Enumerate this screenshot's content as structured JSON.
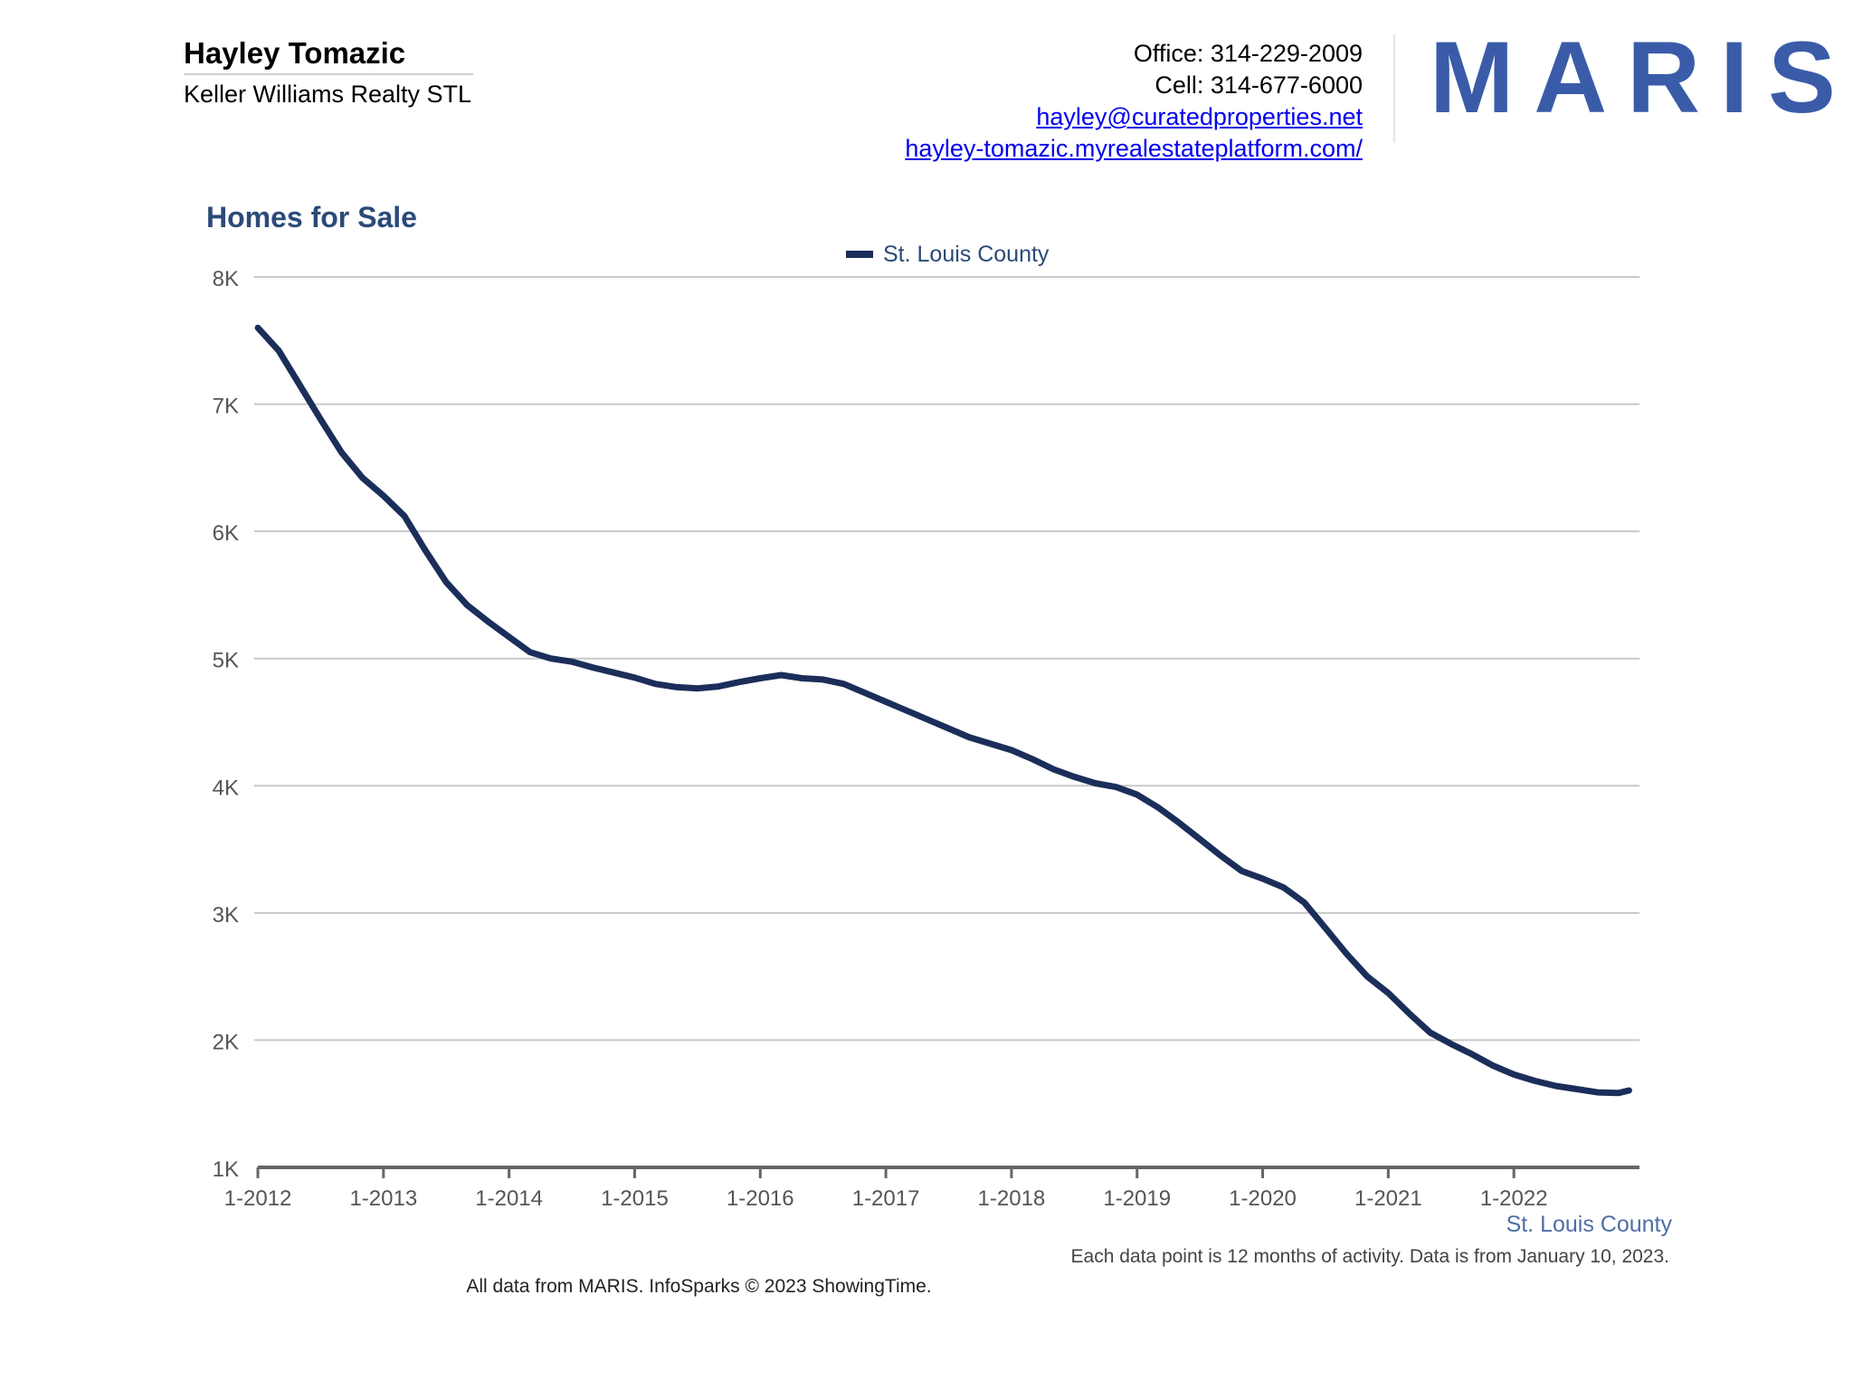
{
  "agent": {
    "name": "Hayley Tomazic",
    "company": "Keller Williams Realty STL"
  },
  "contact": {
    "office": "Office: 314-229-2009",
    "cell": "Cell: 314-677-6000",
    "email": "hayley@curatedproperties.net",
    "website": "hayley-tomazic.myrealestateplatform.com/"
  },
  "logo": {
    "text": "MARIS",
    "color": "#3a5ca8"
  },
  "chart_data": {
    "type": "line",
    "title": "Homes for Sale",
    "ylim": [
      1000,
      8000
    ],
    "y_ticks": [
      {
        "value": 1000,
        "label": "1K"
      },
      {
        "value": 2000,
        "label": "2K"
      },
      {
        "value": 3000,
        "label": "3K"
      },
      {
        "value": 4000,
        "label": "4K"
      },
      {
        "value": 5000,
        "label": "5K"
      },
      {
        "value": 6000,
        "label": "6K"
      },
      {
        "value": 7000,
        "label": "7K"
      },
      {
        "value": 8000,
        "label": "8K"
      }
    ],
    "x_ticks": [
      "1-2012",
      "1-2013",
      "1-2014",
      "1-2015",
      "1-2016",
      "1-2017",
      "1-2018",
      "1-2019",
      "1-2020",
      "1-2021",
      "1-2022"
    ],
    "xlim": [
      "2012-01",
      "2022-12"
    ],
    "grid": true,
    "legend_position": "top-center",
    "x_axis_caption": "St. Louis County",
    "footnote": "Each data point is 12 months of activity. Data is from January 10, 2023.",
    "series": [
      {
        "name": "St. Louis County",
        "color": "#1b2e5a",
        "points": [
          [
            "2012-01",
            7600
          ],
          [
            "2012-03",
            7420
          ],
          [
            "2012-05",
            7150
          ],
          [
            "2012-07",
            6880
          ],
          [
            "2012-09",
            6620
          ],
          [
            "2012-11",
            6420
          ],
          [
            "2013-01",
            6280
          ],
          [
            "2013-03",
            6120
          ],
          [
            "2013-05",
            5850
          ],
          [
            "2013-07",
            5600
          ],
          [
            "2013-09",
            5420
          ],
          [
            "2013-11",
            5290
          ],
          [
            "2014-01",
            5170
          ],
          [
            "2014-03",
            5050
          ],
          [
            "2014-05",
            5000
          ],
          [
            "2014-07",
            4975
          ],
          [
            "2014-09",
            4930
          ],
          [
            "2014-11",
            4890
          ],
          [
            "2015-01",
            4850
          ],
          [
            "2015-03",
            4800
          ],
          [
            "2015-05",
            4775
          ],
          [
            "2015-07",
            4765
          ],
          [
            "2015-09",
            4780
          ],
          [
            "2015-11",
            4815
          ],
          [
            "2016-01",
            4845
          ],
          [
            "2016-03",
            4870
          ],
          [
            "2016-05",
            4845
          ],
          [
            "2016-07",
            4835
          ],
          [
            "2016-09",
            4800
          ],
          [
            "2016-11",
            4730
          ],
          [
            "2017-01",
            4660
          ],
          [
            "2017-03",
            4590
          ],
          [
            "2017-05",
            4520
          ],
          [
            "2017-07",
            4450
          ],
          [
            "2017-09",
            4380
          ],
          [
            "2017-11",
            4330
          ],
          [
            "2018-01",
            4280
          ],
          [
            "2018-03",
            4210
          ],
          [
            "2018-05",
            4130
          ],
          [
            "2018-07",
            4070
          ],
          [
            "2018-09",
            4020
          ],
          [
            "2018-11",
            3990
          ],
          [
            "2019-01",
            3930
          ],
          [
            "2019-03",
            3830
          ],
          [
            "2019-05",
            3710
          ],
          [
            "2019-07",
            3580
          ],
          [
            "2019-09",
            3450
          ],
          [
            "2019-11",
            3330
          ],
          [
            "2020-01",
            3270
          ],
          [
            "2020-03",
            3200
          ],
          [
            "2020-05",
            3080
          ],
          [
            "2020-07",
            2880
          ],
          [
            "2020-09",
            2680
          ],
          [
            "2020-11",
            2500
          ],
          [
            "2021-01",
            2370
          ],
          [
            "2021-03",
            2210
          ],
          [
            "2021-05",
            2060
          ],
          [
            "2021-07",
            1970
          ],
          [
            "2021-09",
            1890
          ],
          [
            "2021-11",
            1800
          ],
          [
            "2022-01",
            1730
          ],
          [
            "2022-03",
            1680
          ],
          [
            "2022-05",
            1640
          ],
          [
            "2022-07",
            1615
          ],
          [
            "2022-09",
            1590
          ],
          [
            "2022-11",
            1585
          ],
          [
            "2022-12",
            1605
          ]
        ]
      }
    ]
  },
  "attribution": "All data from MARIS. InfoSparks © 2023 ShowingTime."
}
